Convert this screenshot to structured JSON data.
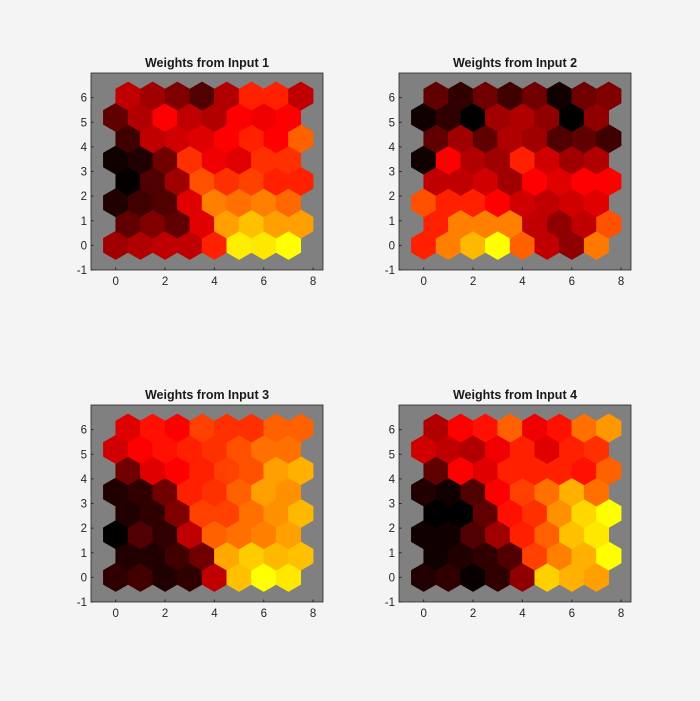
{
  "chart_data": [
    {
      "type": "heatmap",
      "title": "Weights from Input 1",
      "grid": "hexagonal 8x8",
      "colormap": "hot",
      "xlim": [
        -1,
        8.4
      ],
      "ylim": [
        -1,
        7
      ],
      "xticks": [
        0,
        2,
        4,
        6,
        8
      ],
      "yticks": [
        -1,
        0,
        1,
        2,
        3,
        4,
        5,
        6
      ],
      "background": "#808080",
      "rows_bottom_to_top": [
        [
          "#a00000",
          "#b00000",
          "#c00000",
          "#c00000",
          "#ff2000",
          "#ffee00",
          "#ffe800",
          "#ffff00"
        ],
        [
          "#600000",
          "#800000",
          "#600000",
          "#e00000",
          "#ffa000",
          "#ffc000",
          "#ffa000",
          "#ffa000"
        ],
        [
          "#200000",
          "#400000",
          "#500000",
          "#e00000",
          "#ff8000",
          "#ff7000",
          "#ff8000",
          "#ff6800"
        ],
        [
          "#050000",
          "#500000",
          "#a00000",
          "#ff5000",
          "#ff3000",
          "#ff4000",
          "#ff2000",
          "#ff2000"
        ],
        [
          "#100000",
          "#200000",
          "#700000",
          "#ff3000",
          "#f00000",
          "#e00000",
          "#ff3000",
          "#ff3000"
        ],
        [
          "#400000",
          "#c00000",
          "#d00000",
          "#e00000",
          "#ff0000",
          "#ff2000",
          "#ff0000",
          "#ff6000"
        ],
        [
          "#600000",
          "#b00000",
          "#ff0000",
          "#c00000",
          "#b00000",
          "#ff0000",
          "#f00000",
          "#ff0000"
        ],
        [
          "#c00000",
          "#a00000",
          "#800000",
          "#500000",
          "#b00000",
          "#ff2000",
          "#ff2000",
          "#c00000"
        ]
      ]
    },
    {
      "type": "heatmap",
      "title": "Weights from Input 2",
      "grid": "hexagonal 8x8",
      "colormap": "hot",
      "xlim": [
        -1,
        8.4
      ],
      "ylim": [
        -1,
        7
      ],
      "xticks": [
        0,
        2,
        4,
        6,
        8
      ],
      "yticks": [
        -1,
        0,
        1,
        2,
        3,
        4,
        5,
        6
      ],
      "background": "#808080",
      "rows_bottom_to_top": [
        [
          "#ff2000",
          "#ff8000",
          "#ffb800",
          "#ffff00",
          "#ff6000",
          "#c00000",
          "#900000",
          "#ff7800"
        ],
        [
          "#ff2000",
          "#ff8000",
          "#ff8000",
          "#ff8000",
          "#c00000",
          "#900000",
          "#c00000",
          "#ff5000"
        ],
        [
          "#ff5000",
          "#ff2000",
          "#ff2000",
          "#ff0000",
          "#d00000",
          "#c00000",
          "#d00000",
          "#e00000"
        ],
        [
          "#c00000",
          "#c00000",
          "#d00000",
          "#a00000",
          "#ff0000",
          "#e00000",
          "#ff0000",
          "#ff0000"
        ],
        [
          "#100000",
          "#ff0000",
          "#b00000",
          "#a00000",
          "#ff2000",
          "#d00000",
          "#a00000",
          "#b00000"
        ],
        [
          "#600000",
          "#a00000",
          "#600000",
          "#b00000",
          "#a00000",
          "#500000",
          "#600000",
          "#400000"
        ],
        [
          "#100000",
          "#300000",
          "#000000",
          "#a00000",
          "#b00000",
          "#900000",
          "#000000",
          "#900000"
        ],
        [
          "#600000",
          "#300000",
          "#700000",
          "#400000",
          "#700000",
          "#100000",
          "#700000",
          "#800000"
        ]
      ]
    },
    {
      "type": "heatmap",
      "title": "Weights from Input 3",
      "grid": "hexagonal 8x8",
      "colormap": "hot",
      "xlim": [
        -1,
        8.4
      ],
      "ylim": [
        -1,
        7
      ],
      "xticks": [
        0,
        2,
        4,
        6,
        8
      ],
      "yticks": [
        -1,
        0,
        1,
        2,
        3,
        4,
        5,
        6
      ],
      "background": "#808080",
      "rows_bottom_to_top": [
        [
          "#300000",
          "#400000",
          "#200000",
          "#300000",
          "#c00000",
          "#ffc000",
          "#ffff00",
          "#ffe800"
        ],
        [
          "#200000",
          "#200000",
          "#400000",
          "#700000",
          "#ffa800",
          "#ffcc00",
          "#ffb800",
          "#ffc000"
        ],
        [
          "#000000",
          "#500000",
          "#300000",
          "#c00000",
          "#ff6000",
          "#ff7000",
          "#ff8000",
          "#ffa000"
        ],
        [
          "#200000",
          "#300000",
          "#800000",
          "#ff4000",
          "#ff4000",
          "#ff7000",
          "#ff9000",
          "#ffb800"
        ],
        [
          "#200000",
          "#300000",
          "#700000",
          "#ff2000",
          "#ff3000",
          "#ff6000",
          "#ffa000",
          "#ff9000"
        ],
        [
          "#700000",
          "#e00000",
          "#ff0000",
          "#ff2000",
          "#ff4000",
          "#ff5000",
          "#ffa000",
          "#ffb000"
        ],
        [
          "#d00000",
          "#ff0000",
          "#ff1000",
          "#ff2000",
          "#ff3000",
          "#ff5000",
          "#ff7000",
          "#ff7000"
        ],
        [
          "#e00000",
          "#ff1000",
          "#ff0000",
          "#ff4000",
          "#ff3000",
          "#ff3000",
          "#ff6000",
          "#ff6000"
        ]
      ]
    },
    {
      "type": "heatmap",
      "title": "Weights from Input 4",
      "grid": "hexagonal 8x8",
      "colormap": "hot",
      "xlim": [
        -1,
        8.4
      ],
      "ylim": [
        -1,
        7
      ],
      "xticks": [
        0,
        2,
        4,
        6,
        8
      ],
      "yticks": [
        -1,
        0,
        1,
        2,
        3,
        4,
        5,
        6
      ],
      "background": "#808080",
      "rows_bottom_to_top": [
        [
          "#200000",
          "#300000",
          "#080000",
          "#300000",
          "#900000",
          "#ffd000",
          "#ffb000",
          "#ffa000"
        ],
        [
          "#100000",
          "#200000",
          "#300000",
          "#500000",
          "#ff4000",
          "#ff8000",
          "#ffb000",
          "#ffff00"
        ],
        [
          "#100000",
          "#100000",
          "#500000",
          "#a00000",
          "#ff2000",
          "#ff6000",
          "#ffc000",
          "#ffe800"
        ],
        [
          "#000000",
          "#000000",
          "#600000",
          "#ff1000",
          "#ff3000",
          "#ff9000",
          "#ffd800",
          "#ffff00"
        ],
        [
          "#200000",
          "#100000",
          "#500000",
          "#ff0000",
          "#ff4000",
          "#ff7000",
          "#ffb000",
          "#ff7000"
        ],
        [
          "#600000",
          "#ff0000",
          "#e00000",
          "#ff2000",
          "#ff2000",
          "#ff2000",
          "#ff1000",
          "#ff6000"
        ],
        [
          "#d00000",
          "#c00000",
          "#b00000",
          "#f00000",
          "#ff2000",
          "#e00000",
          "#ff2000",
          "#ff3000"
        ],
        [
          "#b00000",
          "#ff0000",
          "#ff1000",
          "#ff6000",
          "#f00000",
          "#ff1000",
          "#ff7000",
          "#ff9800"
        ]
      ]
    }
  ]
}
